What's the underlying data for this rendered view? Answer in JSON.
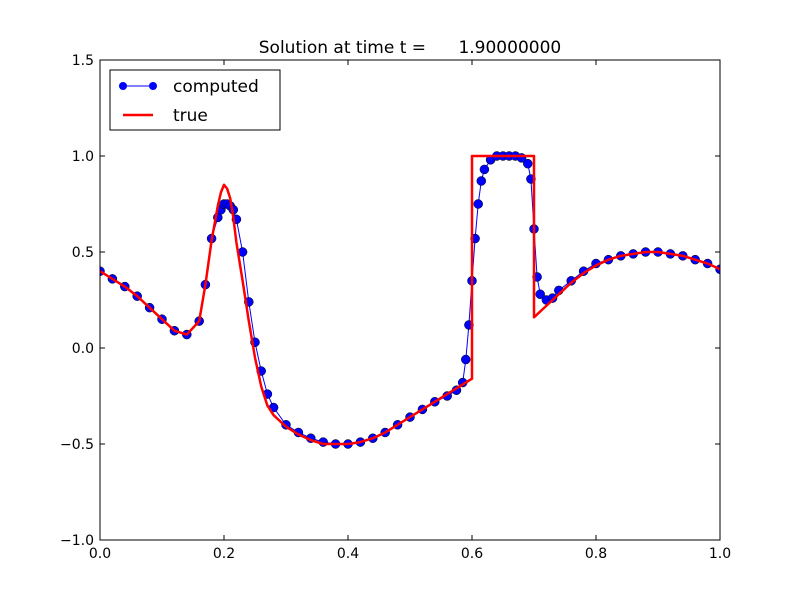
{
  "chart_data": {
    "type": "line",
    "title": "Solution at time t =      1.90000000",
    "xlabel": "",
    "ylabel": "",
    "xlim": [
      0.0,
      1.0
    ],
    "ylim": [
      -1.0,
      1.5
    ],
    "xticks": [
      "0.0",
      "0.2",
      "0.4",
      "0.6",
      "0.8",
      "1.0"
    ],
    "yticks": [
      "−1.0",
      "−0.5",
      "0.0",
      "0.5",
      "1.0",
      "1.5"
    ],
    "grid": false,
    "legend_position": "top-left",
    "legend": [
      "computed",
      "true"
    ],
    "series": [
      {
        "name": "computed",
        "style": "line-with-circle-markers",
        "color": "#0000ff",
        "x": [
          0.0,
          0.02,
          0.04,
          0.06,
          0.08,
          0.1,
          0.12,
          0.14,
          0.16,
          0.17,
          0.18,
          0.19,
          0.195,
          0.2,
          0.205,
          0.21,
          0.215,
          0.22,
          0.23,
          0.24,
          0.25,
          0.26,
          0.27,
          0.28,
          0.3,
          0.32,
          0.34,
          0.36,
          0.38,
          0.4,
          0.42,
          0.44,
          0.46,
          0.48,
          0.5,
          0.52,
          0.54,
          0.56,
          0.575,
          0.585,
          0.59,
          0.595,
          0.6,
          0.605,
          0.61,
          0.615,
          0.62,
          0.63,
          0.64,
          0.65,
          0.66,
          0.67,
          0.68,
          0.69,
          0.695,
          0.7,
          0.705,
          0.71,
          0.72,
          0.73,
          0.74,
          0.76,
          0.78,
          0.8,
          0.82,
          0.84,
          0.86,
          0.88,
          0.9,
          0.92,
          0.94,
          0.96,
          0.98,
          1.0
        ],
        "y": [
          0.4,
          0.36,
          0.32,
          0.27,
          0.21,
          0.15,
          0.09,
          0.07,
          0.14,
          0.33,
          0.57,
          0.68,
          0.72,
          0.75,
          0.75,
          0.74,
          0.72,
          0.67,
          0.5,
          0.24,
          0.03,
          -0.12,
          -0.24,
          -0.31,
          -0.4,
          -0.44,
          -0.47,
          -0.49,
          -0.5,
          -0.5,
          -0.49,
          -0.47,
          -0.44,
          -0.4,
          -0.36,
          -0.32,
          -0.28,
          -0.25,
          -0.22,
          -0.18,
          -0.06,
          0.12,
          0.35,
          0.57,
          0.75,
          0.87,
          0.93,
          0.98,
          1.0,
          1.0,
          1.0,
          1.0,
          0.99,
          0.96,
          0.88,
          0.62,
          0.37,
          0.28,
          0.25,
          0.26,
          0.3,
          0.35,
          0.4,
          0.44,
          0.46,
          0.48,
          0.49,
          0.5,
          0.5,
          0.49,
          0.48,
          0.46,
          0.44,
          0.41
        ]
      },
      {
        "name": "true",
        "style": "line",
        "color": "#ff0000",
        "x": [
          0.0,
          0.02,
          0.04,
          0.06,
          0.08,
          0.1,
          0.12,
          0.14,
          0.16,
          0.17,
          0.18,
          0.19,
          0.195,
          0.2,
          0.205,
          0.21,
          0.215,
          0.22,
          0.23,
          0.24,
          0.25,
          0.26,
          0.27,
          0.28,
          0.3,
          0.32,
          0.34,
          0.36,
          0.38,
          0.4,
          0.42,
          0.44,
          0.46,
          0.48,
          0.5,
          0.52,
          0.54,
          0.56,
          0.58,
          0.6,
          0.6,
          0.65,
          0.7,
          0.7,
          0.72,
          0.74,
          0.76,
          0.78,
          0.8,
          0.82,
          0.84,
          0.86,
          0.88,
          0.9,
          0.92,
          0.94,
          0.96,
          0.98,
          1.0
        ],
        "y": [
          0.4,
          0.36,
          0.32,
          0.27,
          0.21,
          0.15,
          0.09,
          0.07,
          0.14,
          0.33,
          0.56,
          0.74,
          0.81,
          0.85,
          0.83,
          0.78,
          0.68,
          0.55,
          0.35,
          0.14,
          -0.05,
          -0.2,
          -0.3,
          -0.35,
          -0.41,
          -0.45,
          -0.48,
          -0.5,
          -0.5,
          -0.5,
          -0.49,
          -0.47,
          -0.44,
          -0.4,
          -0.36,
          -0.32,
          -0.28,
          -0.24,
          -0.2,
          -0.16,
          1.0,
          1.0,
          1.0,
          0.16,
          0.22,
          0.28,
          0.34,
          0.39,
          0.43,
          0.46,
          0.48,
          0.49,
          0.5,
          0.5,
          0.49,
          0.48,
          0.46,
          0.44,
          0.41
        ]
      }
    ]
  }
}
